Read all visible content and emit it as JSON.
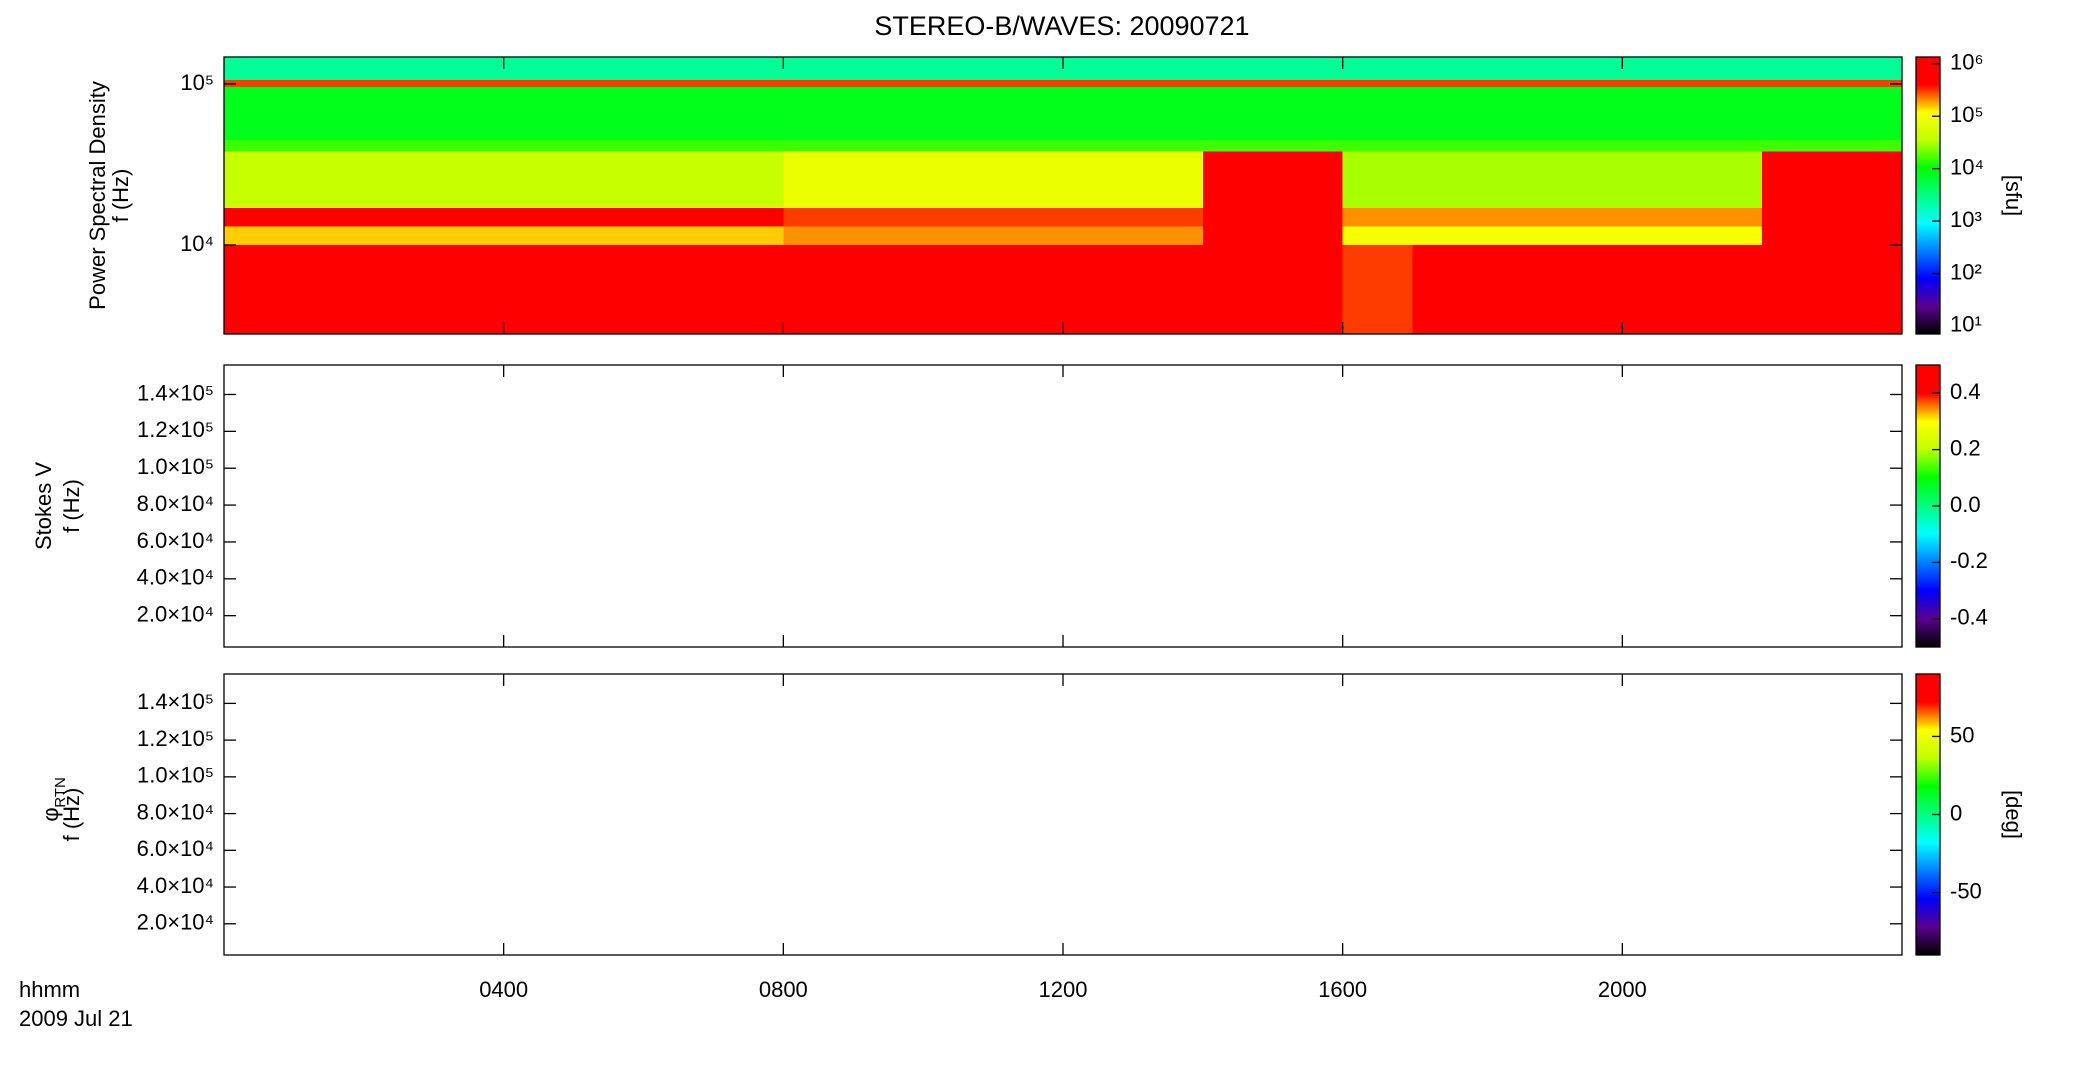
{
  "chart_data": [
    {
      "type": "heatmap",
      "title": "STEREO-B/WAVES: 20090721",
      "ylabel": [
        "Power Spectral Density",
        "f (Hz)"
      ],
      "ylog": true,
      "ylim": [
        2800,
        147000
      ],
      "yticks": [
        {
          "value": 10000,
          "label": "10⁴"
        },
        {
          "value": 100000,
          "label": "10⁵"
        }
      ],
      "x": [
        0,
        1,
        2,
        3,
        4,
        5,
        6,
        7,
        8,
        9,
        10,
        11,
        12,
        13,
        14,
        15,
        16,
        17,
        18,
        19,
        20,
        21,
        22,
        23,
        24
      ],
      "y": [
        2800,
        10000,
        13000,
        17000,
        38000,
        45000,
        96000,
        106000,
        147000
      ],
      "z": [
        [
          1000000,
          1000000,
          1000000,
          1000000,
          1000000,
          1000000,
          1000000,
          1000000,
          1000000,
          1000000,
          1000000,
          1000000,
          1000000,
          1000000,
          1000000,
          1000000,
          300000,
          1000000,
          1000000,
          1000000,
          1000000,
          1000000,
          1000000,
          1000000
        ],
        [
          150000,
          150000,
          150000,
          150000,
          150000,
          150000,
          150000,
          150000,
          200000,
          200000,
          200000,
          200000,
          200000,
          200000,
          1000000,
          1000000,
          100000,
          100000,
          100000,
          100000,
          100000,
          100000,
          1000000,
          400000
        ],
        [
          700000,
          700000,
          700000,
          700000,
          700000,
          700000,
          700000,
          700000,
          300000,
          300000,
          300000,
          300000,
          300000,
          300000,
          1000000,
          1000000,
          200000,
          200000,
          200000,
          200000,
          200000,
          200000,
          1000000,
          500000
        ],
        [
          40000,
          40000,
          40000,
          40000,
          40000,
          40000,
          40000,
          40000,
          80000,
          80000,
          80000,
          80000,
          80000,
          80000,
          1000000,
          1000000,
          30000,
          30000,
          30000,
          30000,
          30000,
          30000,
          1000000,
          600000
        ],
        [
          15000,
          15000,
          15000,
          15000,
          15000,
          15000,
          15000,
          15000,
          15000,
          15000,
          15000,
          15000,
          15000,
          15000,
          15000,
          15000,
          15000,
          15000,
          15000,
          15000,
          15000,
          15000,
          15000,
          15000
        ],
        [
          8000,
          8000,
          8000,
          8000,
          8000,
          8000,
          8000,
          8000,
          8000,
          8000,
          8000,
          8000,
          8000,
          8000,
          8000,
          8000,
          8000,
          8000,
          8000,
          8000,
          8000,
          8000,
          8000,
          8000
        ],
        [
          300000,
          300000,
          300000,
          300000,
          300000,
          300000,
          300000,
          300000,
          300000,
          300000,
          300000,
          300000,
          300000,
          300000,
          300000,
          300000,
          300000,
          300000,
          300000,
          300000,
          300000,
          300000,
          300000,
          300000
        ],
        [
          2500,
          2500,
          2500,
          2500,
          2500,
          2500,
          2500,
          2500,
          2500,
          2500,
          2500,
          2500,
          2500,
          2500,
          2500,
          2500,
          2500,
          2500,
          2500,
          2500,
          2500,
          2500,
          2500,
          2500
        ]
      ],
      "zlog": true,
      "zlim": [
        7,
        1350000
      ],
      "zticks": [
        {
          "value": 10,
          "label": "10¹"
        },
        {
          "value": 100,
          "label": "10²"
        },
        {
          "value": 1000,
          "label": "10³"
        },
        {
          "value": 10000,
          "label": "10⁴"
        },
        {
          "value": 100000,
          "label": "10⁵"
        },
        {
          "value": 1000000,
          "label": "10⁶"
        }
      ],
      "zlabel": "[sfu]",
      "colormap": [
        "#000000",
        "#5a0090",
        "#0000ff",
        "#0080ff",
        "#00ffff",
        "#00ff80",
        "#00ff00",
        "#c0ff00",
        "#ffff00",
        "#ff0000",
        "#ff0000"
      ]
    },
    {
      "type": "heatmap",
      "ylabel": [
        "Stokes V",
        "f (Hz)"
      ],
      "ylim": [
        3000,
        156000
      ],
      "yticks": [
        {
          "value": 20000,
          "label": "2.0×10⁴"
        },
        {
          "value": 40000,
          "label": "4.0×10⁴"
        },
        {
          "value": 60000,
          "label": "6.0×10⁴"
        },
        {
          "value": 80000,
          "label": "8.0×10⁴"
        },
        {
          "value": 100000,
          "label": "1.0×10⁵"
        },
        {
          "value": 120000,
          "label": "1.2×10⁵"
        },
        {
          "value": 140000,
          "label": "1.4×10⁵"
        }
      ],
      "zlim": [
        -0.5,
        0.5
      ],
      "zticks": [
        -0.4,
        -0.2,
        {
          "value": 0,
          "label": "0.0"
        },
        0.2,
        0.4
      ]
    },
    {
      "type": "heatmap",
      "ylabel": [
        "φ",
        "f (Hz)"
      ],
      "ylabel_sub": "RTN",
      "ylim": [
        3000,
        156000
      ],
      "yticks": [
        {
          "value": 20000,
          "label": "2.0×10⁴"
        },
        {
          "value": 40000,
          "label": "4.0×10⁴"
        },
        {
          "value": 60000,
          "label": "6.0×10⁴"
        },
        {
          "value": 80000,
          "label": "8.0×10⁴"
        },
        {
          "value": 100000,
          "label": "1.0×10⁵"
        },
        {
          "value": 120000,
          "label": "1.2×10⁵"
        },
        {
          "value": 140000,
          "label": "1.4×10⁵"
        }
      ],
      "zlim": [
        -90,
        90
      ],
      "zticks": [
        -50,
        0,
        50
      ],
      "zlabel": "[deg]",
      "xlim": [
        0,
        24
      ],
      "xticks": [
        {
          "value": 4,
          "label": "0400"
        },
        {
          "value": 8,
          "label": "0800"
        },
        {
          "value": 12,
          "label": "1200"
        },
        {
          "value": 16,
          "label": "1600"
        },
        {
          "value": 20,
          "label": "2000"
        }
      ],
      "xlabel": "hhmm",
      "date": "2009 Jul 21"
    }
  ]
}
